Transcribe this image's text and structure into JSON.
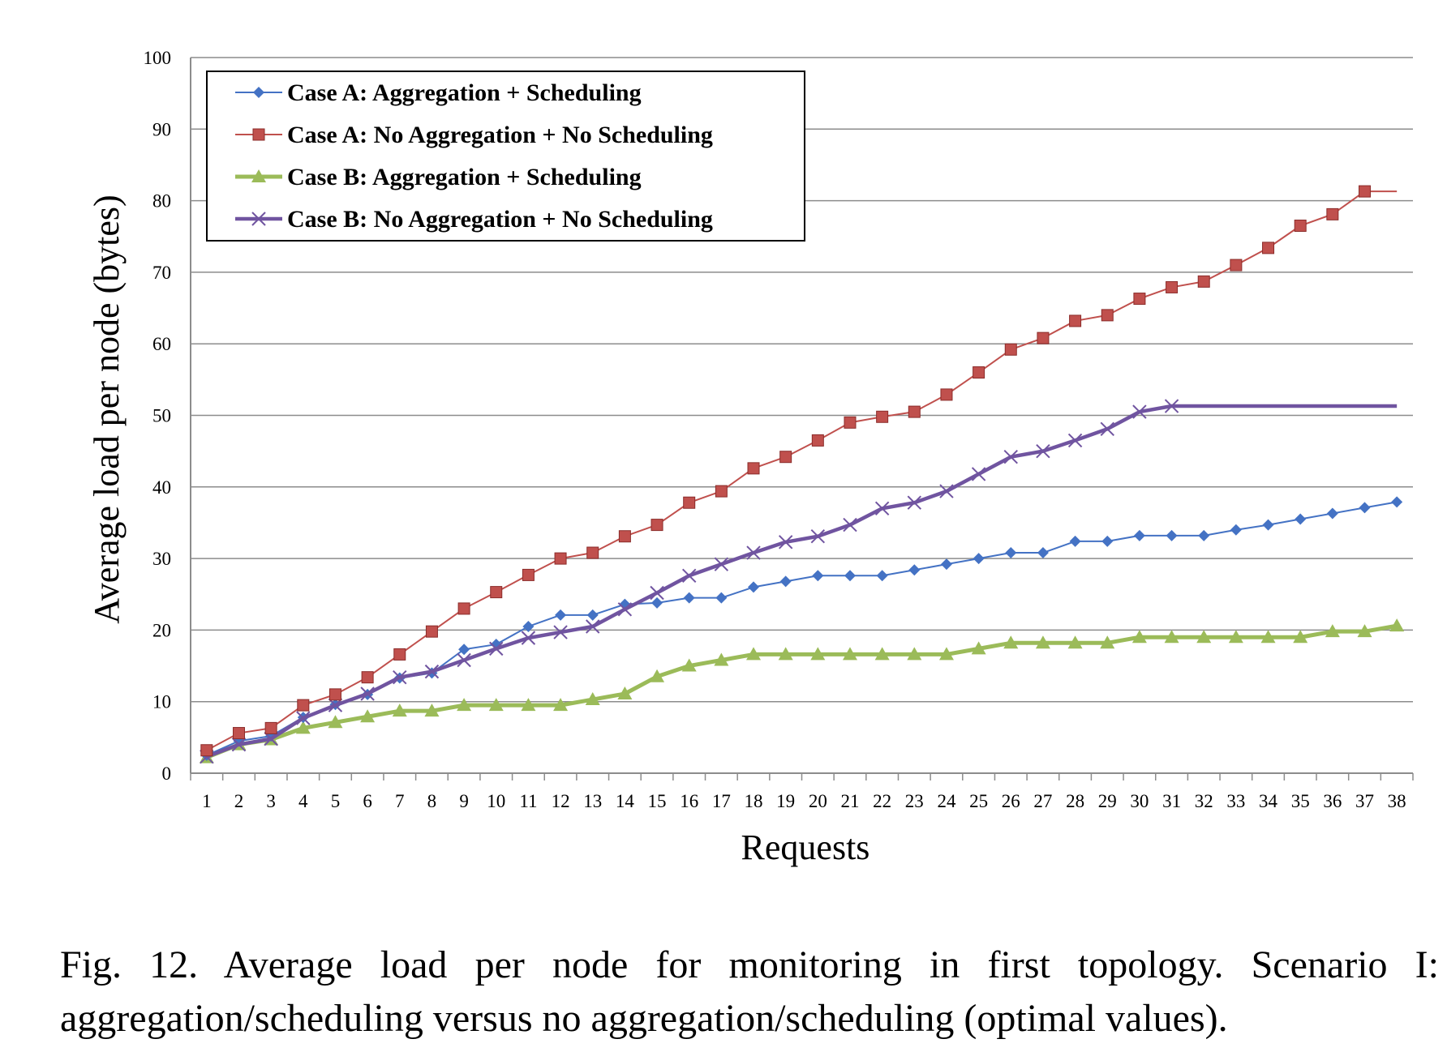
{
  "caption": "Fig. 12. Average load per node for monitoring in first topology. Scenario I: aggregation/scheduling versus no aggregation/scheduling (optimal values).",
  "chart_data": {
    "type": "line",
    "title": "",
    "xlabel": "Requests",
    "ylabel": "Average load per node (bytes)",
    "ylim": [
      0,
      100
    ],
    "yticks": [
      0,
      10,
      20,
      30,
      40,
      50,
      60,
      70,
      80,
      90,
      100
    ],
    "grid": "horizontal",
    "legend": "top-left",
    "categories": [
      "1",
      "2",
      "3",
      "4",
      "5",
      "6",
      "7",
      "8",
      "9",
      "10",
      "11",
      "12",
      "13",
      "14",
      "15",
      "16",
      "17",
      "18",
      "19",
      "20",
      "21",
      "22",
      "23",
      "24",
      "25",
      "26",
      "27",
      "28",
      "29",
      "30",
      "31",
      "32",
      "33",
      "34",
      "35",
      "36",
      "37",
      "38"
    ],
    "series": [
      {
        "name": "Case A: Aggregation + Scheduling",
        "color": "#4472c4",
        "marker": "diamond",
        "values": [
          2.5,
          4.5,
          5.2,
          7.8,
          9.6,
          11.0,
          13.3,
          14.0,
          17.3,
          18.0,
          20.5,
          22.1,
          22.1,
          23.6,
          23.8,
          24.5,
          24.5,
          26.0,
          26.8,
          27.6,
          27.6,
          27.6,
          28.4,
          29.2,
          30.0,
          30.8,
          30.8,
          32.4,
          32.4,
          33.2,
          33.2,
          33.2,
          34.0,
          34.7,
          35.5,
          36.3,
          37.1,
          37.9
        ]
      },
      {
        "name": "Case A: No Aggregation + No Scheduling",
        "color": "#c0504d",
        "marker": "square",
        "values": [
          3.2,
          5.6,
          6.3,
          9.5,
          11.0,
          13.4,
          16.6,
          19.8,
          23.0,
          25.3,
          27.7,
          30.0,
          30.8,
          33.1,
          34.7,
          37.8,
          39.4,
          42.6,
          44.2,
          46.5,
          49.0,
          49.8,
          50.5,
          52.9,
          56.0,
          59.2,
          60.8,
          63.2,
          64.0,
          66.3,
          67.9,
          68.7,
          71.0,
          73.4,
          76.5,
          78.1,
          81.3,
          81.3
        ]
      },
      {
        "name": "Case B: Aggregation + Scheduling",
        "color": "#9bbb59",
        "marker": "triangle",
        "values": [
          2.2,
          4.0,
          4.7,
          6.3,
          7.1,
          7.9,
          8.7,
          8.7,
          9.5,
          9.5,
          9.5,
          9.5,
          10.3,
          11.1,
          13.5,
          15.0,
          15.8,
          16.6,
          16.6,
          16.6,
          16.6,
          16.6,
          16.6,
          16.6,
          17.4,
          18.2,
          18.2,
          18.2,
          18.2,
          19.0,
          19.0,
          19.0,
          19.0,
          19.0,
          19.0,
          19.8,
          19.8,
          20.6
        ]
      },
      {
        "name": "Case B: No Aggregation + No Scheduling",
        "color": "#7054a0",
        "marker": "x",
        "values": [
          2.3,
          4.0,
          4.8,
          7.7,
          9.5,
          11.1,
          13.4,
          14.2,
          15.8,
          17.4,
          18.9,
          19.7,
          20.5,
          22.9,
          25.2,
          27.6,
          29.2,
          30.8,
          32.3,
          33.1,
          34.7,
          37.0,
          37.8,
          39.4,
          41.8,
          44.2,
          45.0,
          46.5,
          48.1,
          50.5,
          51.3,
          51.3,
          51.3,
          51.3,
          51.3,
          51.3,
          51.3,
          51.3
        ],
        "markers_until": 31
      }
    ]
  }
}
